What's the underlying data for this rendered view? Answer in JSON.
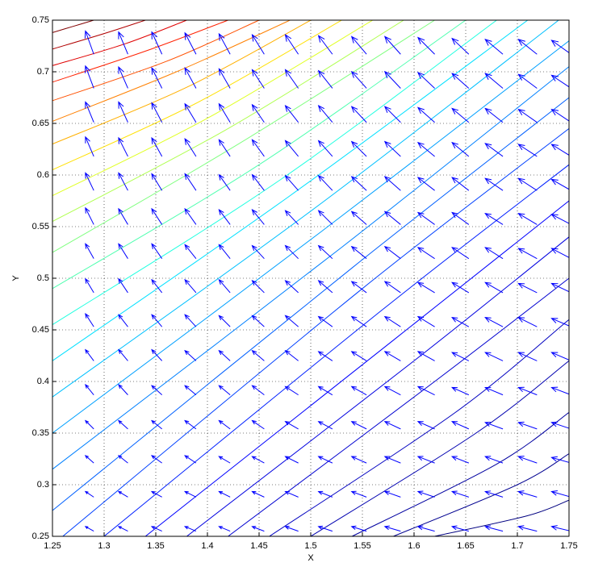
{
  "chart_data": {
    "type": "contour",
    "xlabel": "X",
    "ylabel": "Y",
    "xlim": [
      1.25,
      1.75
    ],
    "ylim": [
      0.25,
      0.75
    ],
    "xticks": [
      {
        "value": 1.25,
        "label": "1.25"
      },
      1.3,
      1.35,
      1.4,
      1.45,
      1.5,
      1.55,
      1.6,
      1.65,
      1.7,
      1.75
    ],
    "yticks": [
      0.25,
      0.3,
      0.35,
      0.4,
      0.45,
      0.5,
      0.55,
      0.6,
      0.65,
      0.7,
      0.75
    ],
    "grid": true,
    "contours": [
      {
        "color": "#800000",
        "x": [
          1.25,
          1.27,
          1.29
        ],
        "y": [
          0.738,
          0.744,
          0.75
        ]
      },
      {
        "color": "#b00000",
        "x": [
          1.25,
          1.3,
          1.34
        ],
        "y": [
          0.722,
          0.737,
          0.75
        ]
      },
      {
        "color": "#e00000",
        "x": [
          1.25,
          1.32,
          1.38
        ],
        "y": [
          0.706,
          0.727,
          0.75
        ]
      },
      {
        "color": "#ff2000",
        "x": [
          1.25,
          1.34,
          1.42
        ],
        "y": [
          0.69,
          0.72,
          0.75
        ]
      },
      {
        "color": "#ff5000",
        "x": [
          1.25,
          1.36,
          1.45
        ],
        "y": [
          0.672,
          0.71,
          0.75
        ]
      },
      {
        "color": "#ff8000",
        "x": [
          1.25,
          1.37,
          1.48
        ],
        "y": [
          0.652,
          0.7,
          0.75
        ]
      },
      {
        "color": "#ffb000",
        "x": [
          1.25,
          1.38,
          1.5
        ],
        "y": [
          0.63,
          0.685,
          0.75
        ]
      },
      {
        "color": "#ffe000",
        "x": [
          1.25,
          1.39,
          1.53
        ],
        "y": [
          0.605,
          0.67,
          0.75
        ]
      },
      {
        "color": "#e0ff20",
        "x": [
          1.25,
          1.4,
          1.56
        ],
        "y": [
          0.58,
          0.655,
          0.75
        ]
      },
      {
        "color": "#b0ff50",
        "x": [
          1.25,
          1.42,
          1.59
        ],
        "y": [
          0.555,
          0.645,
          0.75
        ]
      },
      {
        "color": "#80ff80",
        "x": [
          1.25,
          1.43,
          1.62
        ],
        "y": [
          0.525,
          0.63,
          0.75
        ]
      },
      {
        "color": "#50ffb0",
        "x": [
          1.25,
          1.45,
          1.65
        ],
        "y": [
          0.49,
          0.61,
          0.75
        ]
      },
      {
        "color": "#20ffe0",
        "x": [
          1.25,
          1.47,
          1.68
        ],
        "y": [
          0.455,
          0.595,
          0.75
        ]
      },
      {
        "color": "#00e0ff",
        "x": [
          1.25,
          1.48,
          1.71
        ],
        "y": [
          0.42,
          0.58,
          0.75
        ]
      },
      {
        "color": "#00c0ff",
        "x": [
          1.25,
          1.5,
          1.74
        ],
        "y": [
          0.385,
          0.565,
          0.75
        ]
      },
      {
        "color": "#00a0ff",
        "x": [
          1.25,
          1.51,
          1.75
        ],
        "y": [
          0.35,
          0.545,
          0.73
        ]
      },
      {
        "color": "#0080ff",
        "x": [
          1.25,
          1.53,
          1.75
        ],
        "y": [
          0.315,
          0.53,
          0.705
        ]
      },
      {
        "color": "#0060ff",
        "x": [
          1.25,
          1.54,
          1.75
        ],
        "y": [
          0.275,
          0.51,
          0.675
        ]
      },
      {
        "color": "#0040ff",
        "x": [
          1.26,
          1.55,
          1.75
        ],
        "y": [
          0.25,
          0.49,
          0.645
        ]
      },
      {
        "color": "#0020ff",
        "x": [
          1.3,
          1.57,
          1.75
        ],
        "y": [
          0.25,
          0.47,
          0.61
        ]
      },
      {
        "color": "#0000ff",
        "x": [
          1.34,
          1.58,
          1.75
        ],
        "y": [
          0.25,
          0.44,
          0.575
        ]
      },
      {
        "color": "#0000e0",
        "x": [
          1.38,
          1.6,
          1.75
        ],
        "y": [
          0.25,
          0.42,
          0.54
        ]
      },
      {
        "color": "#0000d0",
        "x": [
          1.42,
          1.62,
          1.75
        ],
        "y": [
          0.25,
          0.4,
          0.5
        ]
      },
      {
        "color": "#0000c0",
        "x": [
          1.46,
          1.64,
          1.75
        ],
        "y": [
          0.25,
          0.37,
          0.46
        ]
      },
      {
        "color": "#0000b0",
        "x": [
          1.5,
          1.66,
          1.75
        ],
        "y": [
          0.25,
          0.35,
          0.42
        ]
      },
      {
        "color": "#0000a0",
        "x": [
          1.54,
          1.68,
          1.75
        ],
        "y": [
          0.25,
          0.32,
          0.37
        ]
      },
      {
        "color": "#000090",
        "x": [
          1.58,
          1.7,
          1.75
        ],
        "y": [
          0.25,
          0.3,
          0.33
        ]
      },
      {
        "color": "#000080",
        "x": [
          1.62,
          1.71,
          1.75
        ],
        "y": [
          0.25,
          0.27,
          0.285
        ]
      }
    ],
    "quiver": {
      "color": "#0000ff",
      "x": [
        1.29,
        1.323,
        1.356,
        1.389,
        1.422,
        1.455,
        1.488,
        1.521,
        1.554,
        1.587,
        1.62,
        1.653,
        1.686,
        1.719,
        1.752
      ],
      "y": [
        0.255,
        0.288,
        0.321,
        0.354,
        0.387,
        0.42,
        0.453,
        0.486,
        0.519,
        0.552,
        0.585,
        0.618,
        0.651,
        0.684,
        0.717
      ],
      "u": [
        [
          -9,
          -10,
          -11,
          -12,
          -12,
          -13,
          -14,
          -15,
          -16,
          -17,
          -18,
          -18,
          -19,
          -20,
          -21
        ],
        [
          -9,
          -10,
          -11,
          -12,
          -12,
          -13,
          -14,
          -15,
          -16,
          -17,
          -18,
          -18,
          -19,
          -20,
          -21
        ],
        [
          -9,
          -10,
          -11,
          -12,
          -12,
          -13,
          -14,
          -15,
          -16,
          -17,
          -18,
          -18,
          -19,
          -20,
          -21
        ],
        [
          -9,
          -10,
          -11,
          -12,
          -12,
          -13,
          -14,
          -15,
          -16,
          -17,
          -18,
          -18,
          -19,
          -20,
          -21
        ],
        [
          -9,
          -10,
          -11,
          -12,
          -12,
          -13,
          -14,
          -15,
          -16,
          -17,
          -18,
          -18,
          -19,
          -20,
          -21
        ],
        [
          -9,
          -10,
          -11,
          -12,
          -12,
          -13,
          -14,
          -15,
          -16,
          -17,
          -18,
          -18,
          -19,
          -20,
          -21
        ],
        [
          -9,
          -10,
          -11,
          -12,
          -12,
          -13,
          -14,
          -15,
          -16,
          -17,
          -18,
          -18,
          -19,
          -20,
          -21
        ],
        [
          -9,
          -10,
          -11,
          -12,
          -12,
          -13,
          -14,
          -15,
          -16,
          -17,
          -18,
          -18,
          -19,
          -20,
          -21
        ],
        [
          -9,
          -10,
          -11,
          -12,
          -12,
          -13,
          -14,
          -15,
          -16,
          -17,
          -18,
          -18,
          -19,
          -20,
          -21
        ],
        [
          -9,
          -10,
          -11,
          -12,
          -12,
          -13,
          -14,
          -15,
          -16,
          -17,
          -18,
          -18,
          -19,
          -20,
          -21
        ],
        [
          -9,
          -10,
          -11,
          -12,
          -12,
          -13,
          -14,
          -15,
          -16,
          -17,
          -18,
          -18,
          -19,
          -20,
          -21
        ],
        [
          -9,
          -10,
          -11,
          -12,
          -12,
          -13,
          -14,
          -15,
          -16,
          -17,
          -18,
          -18,
          -19,
          -20,
          -21
        ],
        [
          -9,
          -10,
          -11,
          -12,
          -12,
          -13,
          -14,
          -15,
          -16,
          -17,
          -18,
          -18,
          -19,
          -20,
          -21
        ],
        [
          -9,
          -10,
          -11,
          -12,
          -12,
          -13,
          -14,
          -15,
          -16,
          -17,
          -18,
          -18,
          -19,
          -20,
          -21
        ],
        [
          -9,
          -10,
          -11,
          -12,
          -12,
          -13,
          -14,
          -15,
          -16,
          -17,
          -18,
          -18,
          -19,
          -20,
          -21
        ]
      ],
      "v": [
        [
          5,
          5,
          5,
          5,
          5,
          5,
          5,
          5,
          5,
          5,
          5,
          5,
          5,
          5,
          5
        ],
        [
          6,
          6,
          6,
          6,
          6,
          6,
          6,
          6,
          6,
          6,
          6,
          6,
          6,
          6,
          6
        ],
        [
          8,
          8,
          8,
          8,
          7,
          7,
          7,
          7,
          7,
          7,
          7,
          7,
          7,
          7,
          6
        ],
        [
          9,
          9,
          9,
          9,
          9,
          9,
          8,
          8,
          8,
          8,
          8,
          8,
          7,
          7,
          7
        ],
        [
          11,
          11,
          10,
          10,
          10,
          10,
          9,
          9,
          9,
          9,
          9,
          8,
          8,
          8,
          8
        ],
        [
          12,
          12,
          12,
          11,
          11,
          11,
          11,
          10,
          10,
          10,
          10,
          9,
          9,
          9,
          9
        ],
        [
          14,
          13,
          13,
          13,
          12,
          12,
          12,
          11,
          11,
          11,
          11,
          10,
          10,
          10,
          9
        ],
        [
          15,
          15,
          14,
          14,
          14,
          13,
          13,
          13,
          12,
          12,
          11,
          11,
          11,
          10,
          10
        ],
        [
          16,
          16,
          16,
          15,
          15,
          14,
          14,
          14,
          13,
          13,
          12,
          12,
          12,
          11,
          11
        ],
        [
          18,
          17,
          17,
          17,
          16,
          16,
          15,
          15,
          14,
          14,
          13,
          13,
          12,
          12,
          11
        ],
        [
          19,
          19,
          18,
          18,
          17,
          17,
          16,
          16,
          15,
          15,
          14,
          14,
          13,
          13,
          12
        ],
        [
          21,
          20,
          20,
          19,
          18,
          18,
          17,
          17,
          16,
          16,
          15,
          15,
          14,
          13,
          13
        ],
        [
          22,
          22,
          21,
          20,
          20,
          19,
          18,
          18,
          17,
          17,
          16,
          15,
          15,
          14,
          14
        ],
        [
          24,
          23,
          22,
          22,
          21,
          20,
          20,
          19,
          18,
          18,
          17,
          16,
          16,
          15,
          14
        ],
        [
          25,
          24,
          24,
          23,
          22,
          21,
          21,
          20,
          19,
          19,
          18,
          17,
          16,
          16,
          15
        ]
      ]
    }
  }
}
